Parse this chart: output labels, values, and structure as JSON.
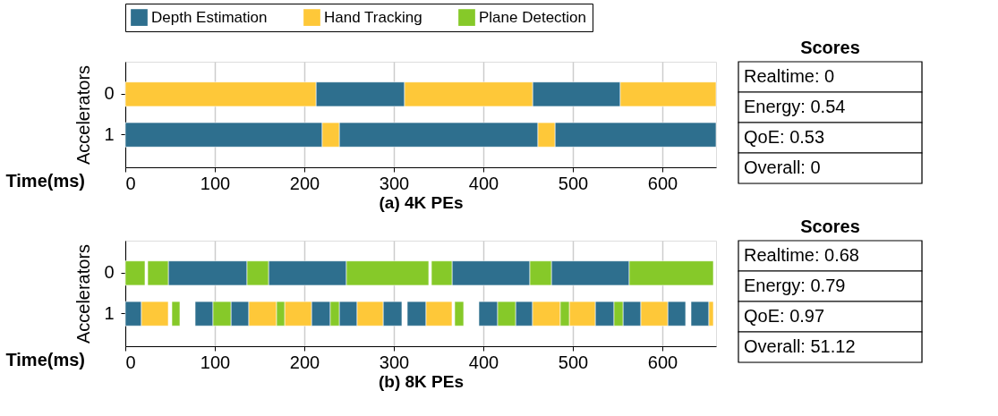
{
  "chart_data": [
    {
      "type": "bar",
      "orientation": "horizontal",
      "ylabel": "Accelerators",
      "xlabel": "(a) 4K PEs",
      "categories": [
        "0",
        "1"
      ],
      "xlim": [
        0,
        660
      ],
      "xticks": [
        0,
        100,
        200,
        300,
        400,
        500,
        600
      ],
      "grid": "x",
      "legend": "top",
      "series": [
        {
          "name": "Depth Estimation",
          "color": "#2e6f8e",
          "base": [
            213,
            0
          ],
          "values": [
            99,
            220
          ]
        },
        {
          "color": "#2e6f8e",
          "base": [
            455,
            239
          ],
          "values": [
            98,
            222
          ]
        },
        {
          "color": "#2e6f8e",
          "base": [
            null,
            480
          ],
          "values": [
            null,
            180
          ]
        },
        {
          "name": "Hand Tracking",
          "color": "#fec839",
          "base": [
            0,
            220
          ],
          "values": [
            213,
            19
          ]
        },
        {
          "color": "#fec839",
          "base": [
            312,
            461
          ],
          "values": [
            143,
            19
          ]
        },
        {
          "color": "#fec839",
          "base": [
            553,
            null
          ],
          "values": [
            107,
            null
          ]
        },
        {
          "name": "Plane Detection",
          "color": "#86c929",
          "base": [
            null,
            null
          ],
          "values": [
            null,
            null
          ]
        }
      ],
      "annotations": [
        "Time(ms)",
        "Scores",
        "Realtime: 0",
        "Energy: 0.54",
        "QoE: 0.53",
        "Overall: 0"
      ]
    },
    {
      "type": "bar",
      "orientation": "horizontal",
      "ylabel": "Accelerators",
      "xlabel": "(b) 8K PEs",
      "categories": [
        "0",
        "1"
      ],
      "xlim": [
        0,
        660
      ],
      "xticks": [
        0,
        100,
        200,
        300,
        400,
        500,
        600
      ],
      "grid": "x",
      "series": [
        {
          "color": "#2e6f8e",
          "base": [
            48,
            0
          ],
          "values": [
            88,
            18
          ]
        },
        {
          "color": "#2e6f8e",
          "base": [
            160,
            78
          ],
          "values": [
            87,
            20
          ]
        },
        {
          "color": "#2e6f8e",
          "base": [
            365,
            118
          ],
          "values": [
            87,
            20
          ]
        },
        {
          "color": "#2e6f8e",
          "base": [
            476,
            208
          ],
          "values": [
            87,
            21
          ]
        },
        {
          "color": "#2e6f8e",
          "base": [
            null,
            239
          ],
          "values": [
            null,
            20
          ]
        },
        {
          "color": "#2e6f8e",
          "base": [
            null,
            288
          ],
          "values": [
            null,
            21
          ]
        },
        {
          "color": "#2e6f8e",
          "base": [
            null,
            315
          ],
          "values": [
            null,
            21
          ]
        },
        {
          "color": "#2e6f8e",
          "base": [
            null,
            395
          ],
          "values": [
            null,
            21
          ]
        },
        {
          "color": "#2e6f8e",
          "base": [
            null,
            436
          ],
          "values": [
            null,
            19
          ]
        },
        {
          "color": "#2e6f8e",
          "base": [
            null,
            525
          ],
          "values": [
            null,
            21
          ]
        },
        {
          "color": "#2e6f8e",
          "base": [
            null,
            556
          ],
          "values": [
            null,
            20
          ]
        },
        {
          "color": "#2e6f8e",
          "base": [
            null,
            606
          ],
          "values": [
            null,
            20
          ]
        },
        {
          "color": "#2e6f8e",
          "base": [
            null,
            632
          ],
          "values": [
            null,
            20
          ]
        },
        {
          "color": "#fec839",
          "base": [
            null,
            18
          ],
          "values": [
            null,
            30
          ]
        },
        {
          "color": "#fec839",
          "base": [
            null,
            138
          ],
          "values": [
            null,
            31
          ]
        },
        {
          "color": "#fec839",
          "base": [
            null,
            178
          ],
          "values": [
            null,
            30
          ]
        },
        {
          "color": "#fec839",
          "base": [
            null,
            259
          ],
          "values": [
            null,
            29
          ]
        },
        {
          "color": "#fec839",
          "base": [
            null,
            336
          ],
          "values": [
            null,
            29
          ]
        },
        {
          "color": "#fec839",
          "base": [
            null,
            455
          ],
          "values": [
            null,
            31
          ]
        },
        {
          "color": "#fec839",
          "base": [
            null,
            496
          ],
          "values": [
            null,
            29
          ]
        },
        {
          "color": "#fec839",
          "base": [
            null,
            576
          ],
          "values": [
            null,
            30
          ]
        },
        {
          "color": "#fec839",
          "base": [
            null,
            652
          ],
          "values": [
            null,
            5
          ]
        },
        {
          "color": "#86c929",
          "base": [
            0,
            52
          ],
          "values": [
            22,
            9
          ]
        },
        {
          "color": "#86c929",
          "base": [
            25,
            98
          ],
          "values": [
            23,
            20
          ]
        },
        {
          "color": "#86c929",
          "base": [
            136,
            169
          ],
          "values": [
            24,
            9
          ]
        },
        {
          "color": "#86c929",
          "base": [
            247,
            229
          ],
          "values": [
            92,
            10
          ]
        },
        {
          "color": "#86c929",
          "base": [
            342,
            368
          ],
          "values": [
            23,
            10
          ]
        },
        {
          "color": "#86c929",
          "base": [
            452,
            416
          ],
          "values": [
            24,
            20
          ]
        },
        {
          "color": "#86c929",
          "base": [
            563,
            486
          ],
          "values": [
            94,
            10
          ]
        },
        {
          "color": "#86c929",
          "base": [
            null,
            546
          ],
          "values": [
            null,
            10
          ]
        }
      ],
      "annotations": [
        "Time(ms)",
        "Scores",
        "Realtime: 0.68",
        "Energy: 0.79",
        "QoE: 0.97",
        "Overall: 51.12"
      ]
    }
  ]
}
